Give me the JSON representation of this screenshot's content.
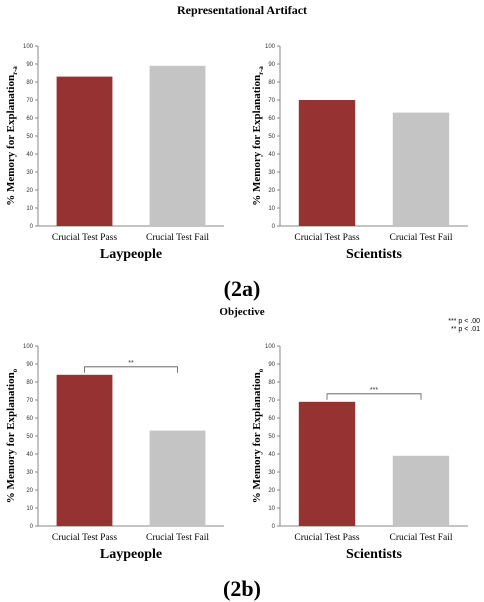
{
  "figure": {
    "title_2a": "Representational Artifact",
    "label_2a": "(2a)",
    "title_2b": "Objective",
    "label_2b": "(2b)",
    "sig_notes": [
      "*** p < .00",
      "** p < .01"
    ]
  },
  "colors": {
    "pass": "#963232",
    "fail": "#c4c4c4"
  },
  "chart_data": [
    {
      "type": "bar",
      "panel": "2a",
      "group": "Laypeople",
      "ylabel": "% Memory for Explanation",
      "ylabel_sub": "r-a",
      "categories": [
        "Crucial Test Pass",
        "Crucial Test Fail"
      ],
      "values": [
        83,
        89
      ],
      "ylim": [
        0,
        100
      ],
      "yticks": [
        "0",
        "10",
        "20",
        "30",
        "40",
        "50",
        "60",
        "70",
        "80",
        "90",
        "100"
      ],
      "sig": ""
    },
    {
      "type": "bar",
      "panel": "2a",
      "group": "Scientists",
      "ylabel": "% Memory for Explanation",
      "ylabel_sub": "r-a",
      "categories": [
        "Crucial Test Pass",
        "Crucial Test Fail"
      ],
      "values": [
        70,
        63
      ],
      "ylim": [
        0,
        100
      ],
      "yticks": [
        "0",
        "10",
        "20",
        "30",
        "40",
        "50",
        "60",
        "70",
        "80",
        "90",
        "100"
      ],
      "sig": ""
    },
    {
      "type": "bar",
      "panel": "2b",
      "group": "Laypeople",
      "ylabel": "% Memory for Explanation",
      "ylabel_sub": "o",
      "categories": [
        "Crucial Test Pass",
        "Crucial Test Fail"
      ],
      "values": [
        84,
        53
      ],
      "ylim": [
        0,
        100
      ],
      "yticks": [
        "0",
        "10",
        "20",
        "30",
        "40",
        "50",
        "60",
        "70",
        "80",
        "90",
        "100"
      ],
      "sig": "**"
    },
    {
      "type": "bar",
      "panel": "2b",
      "group": "Scientists",
      "ylabel": "% Memory for Explanation",
      "ylabel_sub": "o",
      "categories": [
        "Crucial Test Pass",
        "Crucial Test Fail"
      ],
      "values": [
        69,
        39
      ],
      "ylim": [
        0,
        100
      ],
      "yticks": [
        "0",
        "10",
        "20",
        "30",
        "40",
        "50",
        "60",
        "70",
        "80",
        "90",
        "100"
      ],
      "sig": "***"
    }
  ]
}
